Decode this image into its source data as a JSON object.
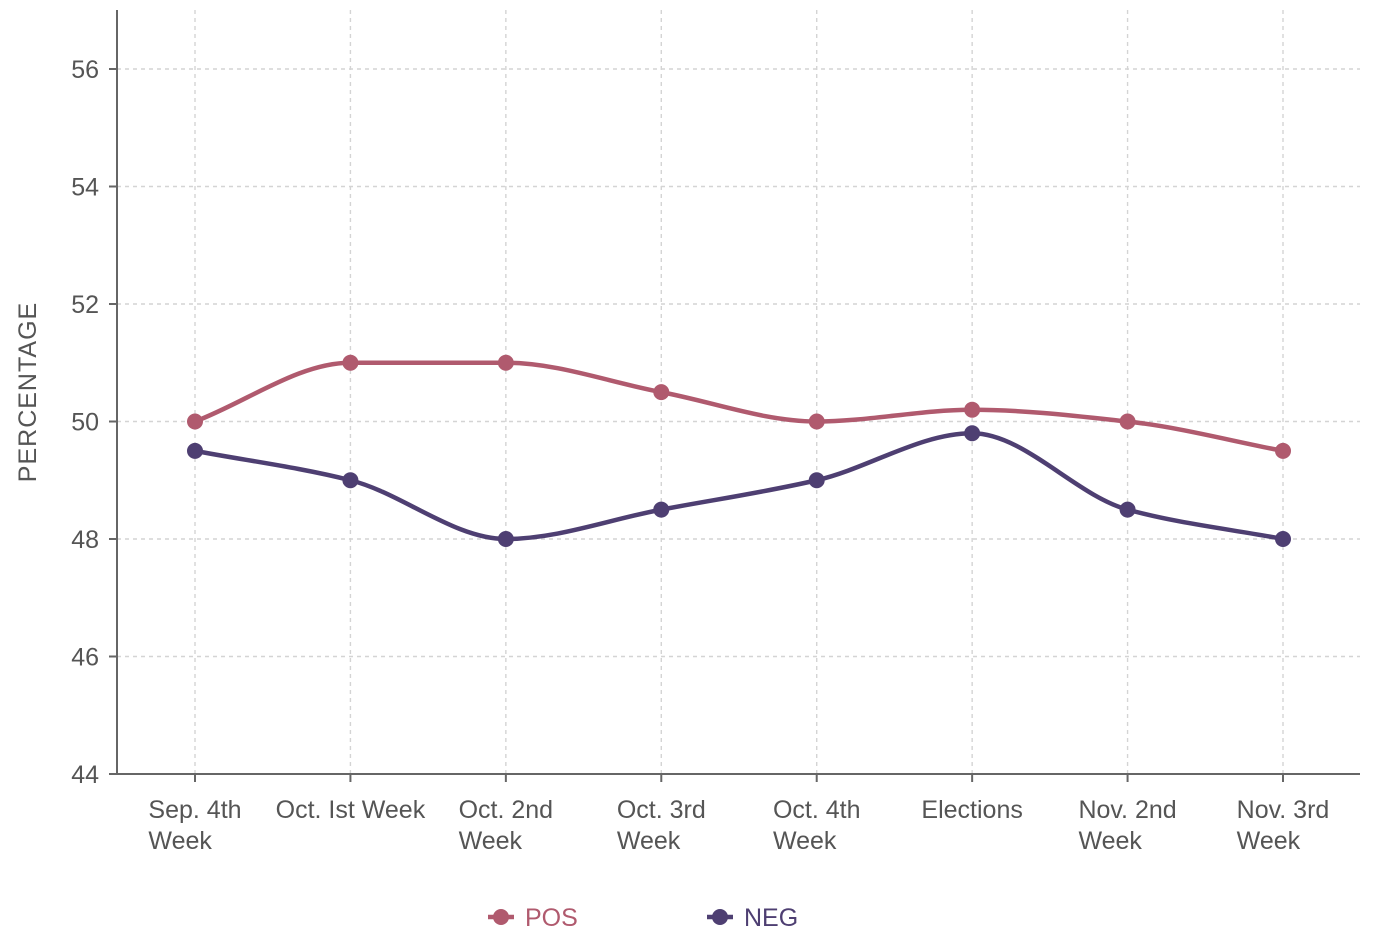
{
  "chart_data": {
    "type": "line",
    "title": "",
    "xlabel": "",
    "ylabel": "PERCENTAGE",
    "ylim": [
      44,
      57
    ],
    "yticks": [
      44,
      46,
      48,
      50,
      52,
      54,
      56
    ],
    "grid": true,
    "legend_position": "bottom-center",
    "categories": [
      [
        "Sep. 4th",
        "Week"
      ],
      [
        "Oct. Ist Week"
      ],
      [
        "Oct. 2nd",
        "Week"
      ],
      [
        "Oct. 3rd",
        "Week"
      ],
      [
        "Oct. 4th",
        "Week"
      ],
      [
        "Elections"
      ],
      [
        "Nov. 2nd",
        "Week"
      ],
      [
        "Nov. 3rd",
        "Week"
      ]
    ],
    "series": [
      {
        "name": "POS",
        "color": "#b05a6e",
        "values": [
          50.0,
          51.0,
          51.0,
          50.5,
          50.0,
          50.2,
          50.0,
          49.5
        ]
      },
      {
        "name": "NEG",
        "color": "#4e3f72",
        "values": [
          49.5,
          49.0,
          48.0,
          48.5,
          49.0,
          49.8,
          48.5,
          48.0
        ]
      }
    ]
  }
}
